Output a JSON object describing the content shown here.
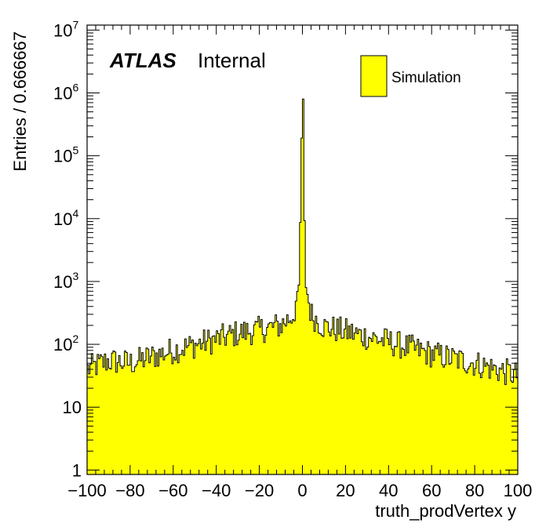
{
  "chart_data": {
    "type": "bar",
    "histogram": true,
    "title": "",
    "xlabel": "truth_prodVertex y",
    "ylabel": "Entries / 0.666667",
    "xlim": [
      -100,
      100
    ],
    "ylim": [
      0.85,
      12000000
    ],
    "yscale": "log",
    "grid": false,
    "fill_color": "#ffff00",
    "line_color": "#000000",
    "x_ticks": [
      -100,
      -80,
      -60,
      -40,
      -20,
      0,
      20,
      40,
      60,
      80,
      100
    ],
    "x_tick_labels": [
      "−100",
      "−80",
      "−60",
      "−40",
      "−20",
      "0",
      "20",
      "40",
      "60",
      "80",
      "100"
    ],
    "y_ticks": [
      {
        "value": 1,
        "base": "1",
        "exp": ""
      },
      {
        "value": 10,
        "base": "10",
        "exp": ""
      },
      {
        "value": 100,
        "base": "10",
        "exp": "2"
      },
      {
        "value": 1000,
        "base": "10",
        "exp": "3"
      },
      {
        "value": 10000,
        "base": "10",
        "exp": "4"
      },
      {
        "value": 100000,
        "base": "10",
        "exp": "5"
      },
      {
        "value": 1000000,
        "base": "10",
        "exp": "6"
      },
      {
        "value": 10000000,
        "base": "10",
        "exp": "7"
      }
    ],
    "bins": {
      "low": -100,
      "high": 100,
      "count": 300
    },
    "bin_width": 0.666667,
    "distribution": {
      "edge_value": 42,
      "center_plateau_value": 200,
      "peak_value": 800000,
      "peak_bin_x": 0
    },
    "key_points": [
      {
        "x": -100,
        "y": 40
      },
      {
        "x": -90,
        "y": 55
      },
      {
        "x": -80,
        "y": 50
      },
      {
        "x": -60,
        "y": 80
      },
      {
        "x": -40,
        "y": 120
      },
      {
        "x": -30,
        "y": 150
      },
      {
        "x": -20,
        "y": 170
      },
      {
        "x": -10,
        "y": 200
      },
      {
        "x": -4,
        "y": 300
      },
      {
        "x": -1.5,
        "y": 900
      },
      {
        "x": 0,
        "y": 800000
      },
      {
        "x": 1.5,
        "y": 900
      },
      {
        "x": 4,
        "y": 300
      },
      {
        "x": 10,
        "y": 190
      },
      {
        "x": 20,
        "y": 160
      },
      {
        "x": 40,
        "y": 110
      },
      {
        "x": 60,
        "y": 70
      },
      {
        "x": 80,
        "y": 50
      },
      {
        "x": 100,
        "y": 32
      }
    ],
    "legend": [
      {
        "label": "Simulation",
        "color": "#ffff00"
      }
    ],
    "legend_position": "top-right",
    "annotation": {
      "bold": "ATLAS",
      "text": "Internal"
    }
  }
}
